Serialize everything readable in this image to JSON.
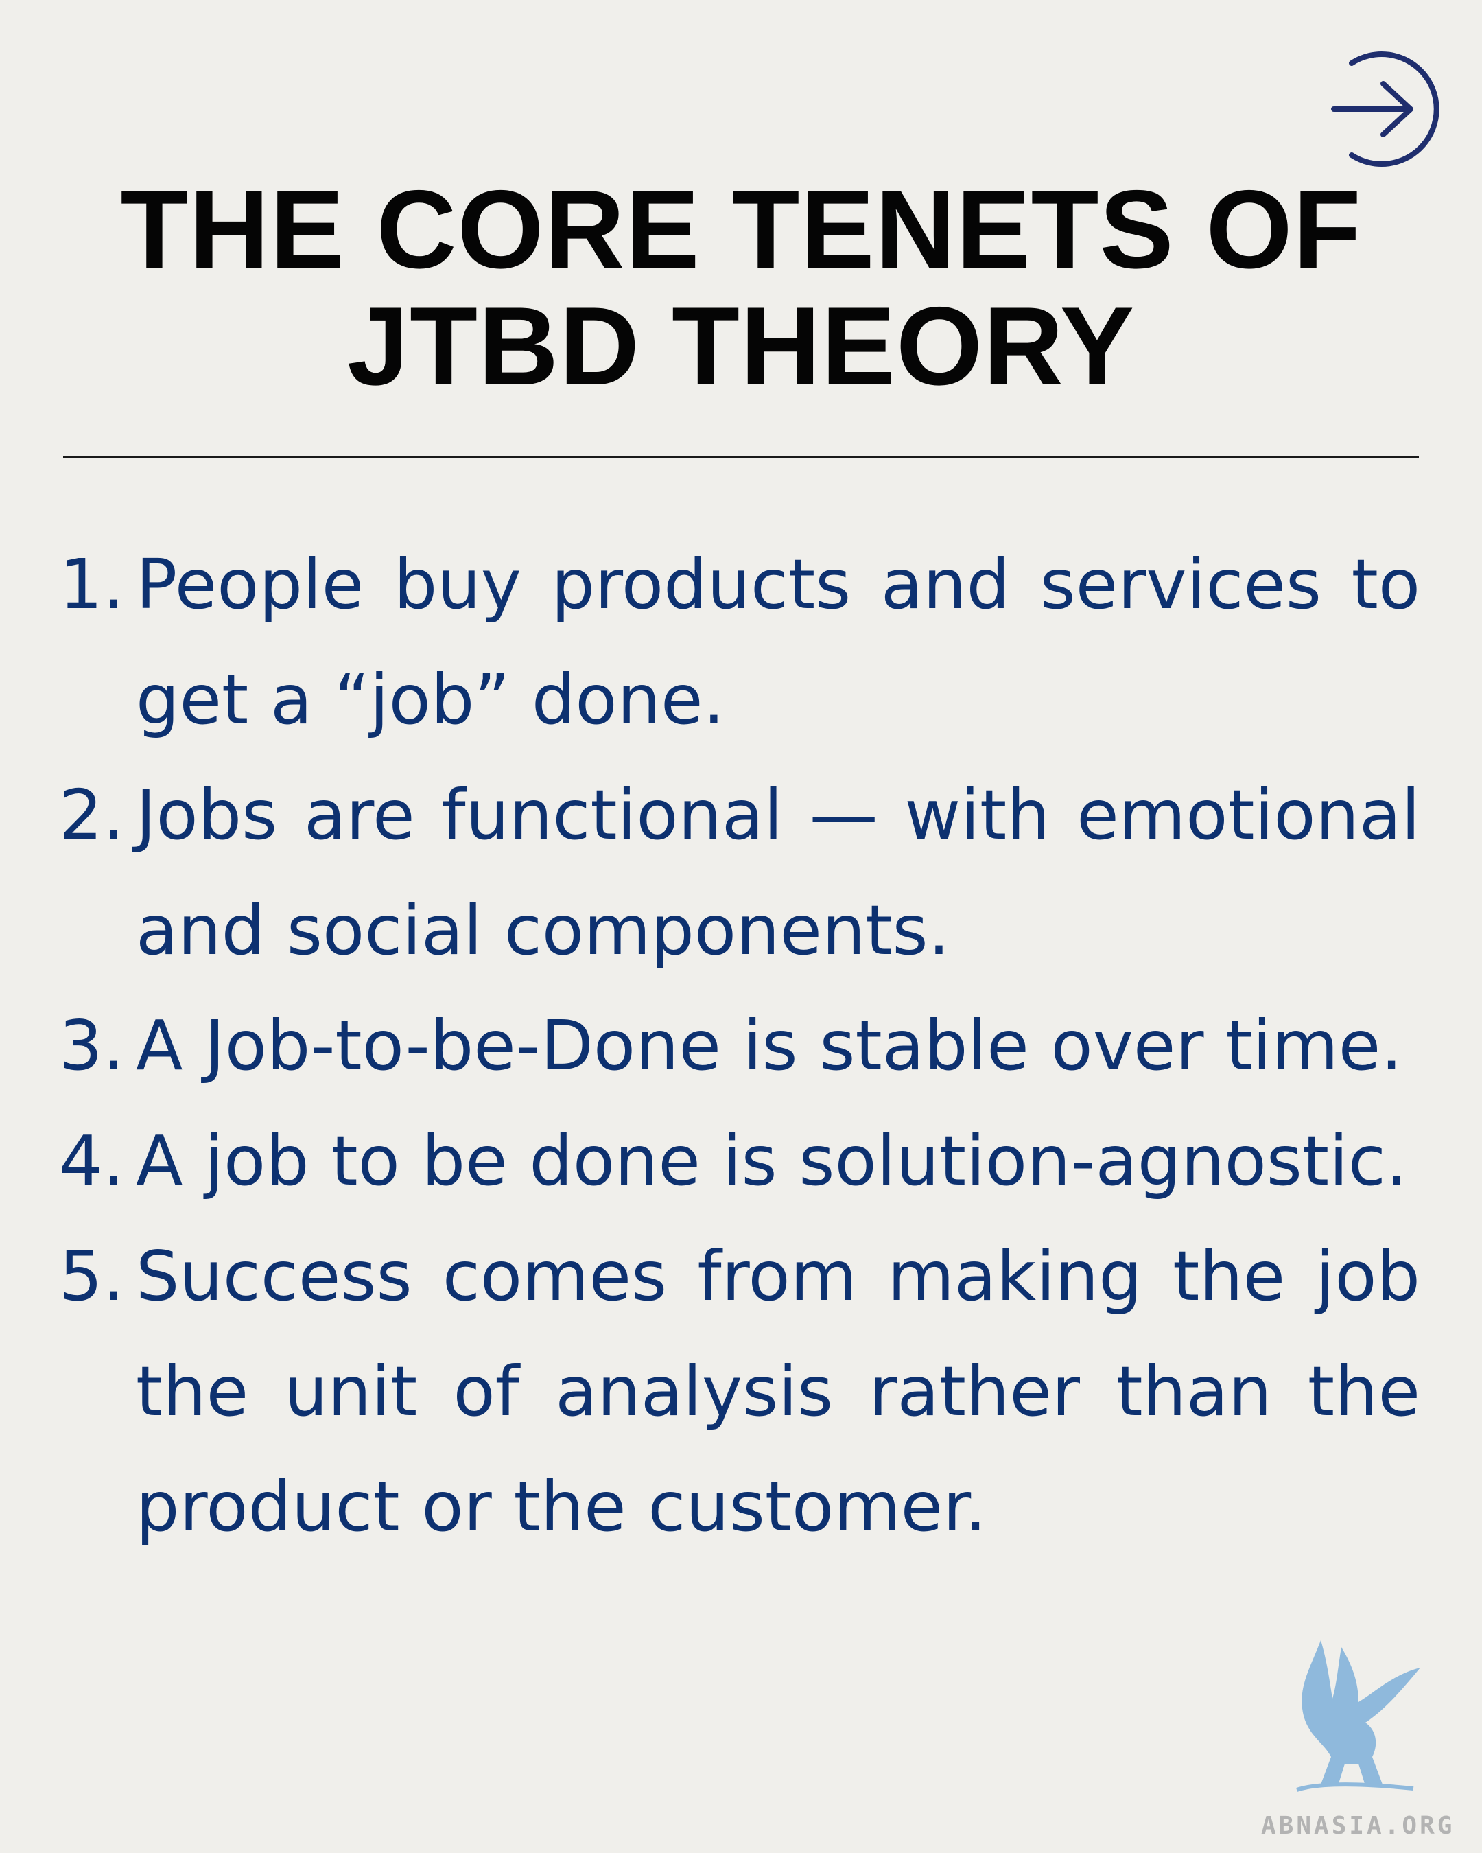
{
  "nav": {
    "next_icon": "arrow-right-circle-icon",
    "accent_color": "#1f2e6e"
  },
  "title": {
    "line1": "THE CORE TENETS OF",
    "line2": "JTBD THEORY"
  },
  "tenets": [
    {
      "number": "1.",
      "text": "People buy products and services to get a “job” done."
    },
    {
      "number": "2.",
      "text": "Jobs are functional — with emotional and social components."
    },
    {
      "number": "3.",
      "text": "A Job-to-be-Done is stable over time."
    },
    {
      "number": "4.",
      "text": "A job to be done is solution-agnostic."
    },
    {
      "number": "5.",
      "text": "Success comes from making the job the unit of analysis rather than the product or the customer."
    }
  ],
  "colors": {
    "background": "#f0efeb",
    "title": "#050505",
    "list_text": "#0d3170",
    "watermark": "#6fa8d8"
  },
  "watermark": {
    "logo_icon": "griffin-logo-icon",
    "label": "ABNASIA.ORG"
  }
}
